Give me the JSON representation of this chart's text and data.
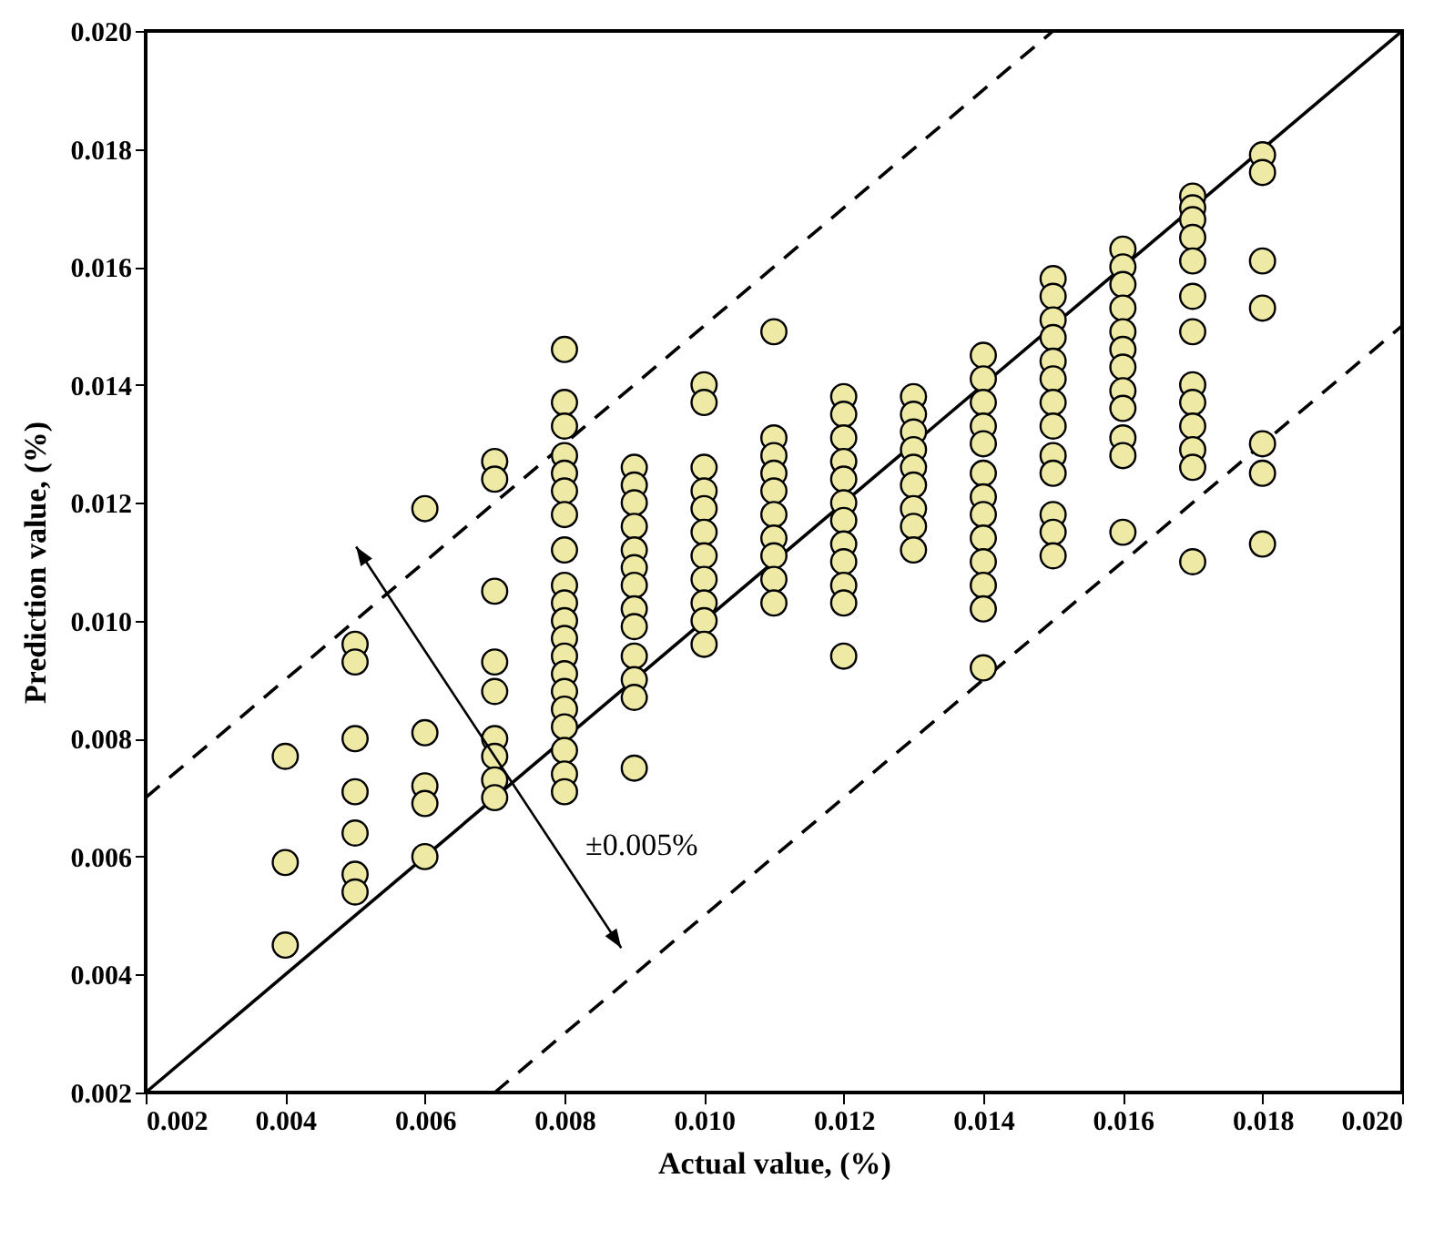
{
  "chart_data": {
    "type": "scatter",
    "xlabel": "Actual value, (%)",
    "ylabel": "Prediction value, (%)",
    "grid": false,
    "xlim": [
      0.002,
      0.02
    ],
    "ylim": [
      0.002,
      0.02
    ],
    "xticks": [
      0.002,
      0.004,
      0.006,
      0.008,
      {
        "value": 0.01,
        "label": "0.010"
      },
      0.012,
      0.014,
      0.016,
      0.018,
      {
        "value": 0.02,
        "label": "0.020"
      }
    ],
    "yticks": [
      0.002,
      0.004,
      0.006,
      0.008,
      {
        "value": 0.01,
        "label": "0.010"
      },
      0.012,
      0.014,
      0.016,
      0.018,
      {
        "value": 0.02,
        "label": "0.020"
      }
    ],
    "annotations": [
      "±0.005%"
    ],
    "series": [
      {
        "type": "line",
        "line_style": "solid",
        "color": "#000000",
        "x": [
          0.002,
          0.02
        ],
        "values": [
          0.002,
          0.02
        ]
      },
      {
        "type": "line",
        "line_style": "dashed",
        "color": "#000000",
        "x": [
          0.002,
          0.015
        ],
        "values": [
          0.007,
          0.02
        ]
      },
      {
        "type": "line",
        "line_style": "dashed",
        "color": "#000000",
        "x": [
          0.007,
          0.02
        ],
        "values": [
          0.002,
          0.015
        ]
      },
      {
        "marker": "circle",
        "color": "#eeeaa6",
        "x": [
          0.004,
          0.004,
          0.004,
          0.005,
          0.005,
          0.005,
          0.005,
          0.005,
          0.005,
          0.005,
          0.006,
          0.006,
          0.006,
          0.006,
          0.006,
          0.007,
          0.007,
          0.007,
          0.007,
          0.007,
          0.007,
          0.007,
          0.007,
          0.007,
          0.008,
          0.008,
          0.008,
          0.008,
          0.008,
          0.008,
          0.008,
          0.008,
          0.008,
          0.008,
          0.008,
          0.008,
          0.008,
          0.008,
          0.008,
          0.008,
          0.008,
          0.008,
          0.008,
          0.008,
          0.009,
          0.009,
          0.009,
          0.009,
          0.009,
          0.009,
          0.009,
          0.009,
          0.009,
          0.009,
          0.009,
          0.009,
          0.009,
          0.01,
          0.01,
          0.01,
          0.01,
          0.01,
          0.01,
          0.01,
          0.01,
          0.01,
          0.01,
          0.01,
          0.011,
          0.011,
          0.011,
          0.011,
          0.011,
          0.011,
          0.011,
          0.011,
          0.011,
          0.011,
          0.012,
          0.012,
          0.012,
          0.012,
          0.012,
          0.012,
          0.012,
          0.012,
          0.012,
          0.012,
          0.012,
          0.012,
          0.013,
          0.013,
          0.013,
          0.013,
          0.013,
          0.013,
          0.013,
          0.013,
          0.013,
          0.014,
          0.014,
          0.014,
          0.014,
          0.014,
          0.014,
          0.014,
          0.014,
          0.014,
          0.014,
          0.014,
          0.014,
          0.014,
          0.015,
          0.015,
          0.015,
          0.015,
          0.015,
          0.015,
          0.015,
          0.015,
          0.015,
          0.015,
          0.015,
          0.015,
          0.015,
          0.016,
          0.016,
          0.016,
          0.016,
          0.016,
          0.016,
          0.016,
          0.016,
          0.016,
          0.016,
          0.016,
          0.016,
          0.017,
          0.017,
          0.017,
          0.017,
          0.017,
          0.017,
          0.017,
          0.017,
          0.017,
          0.017,
          0.017,
          0.017,
          0.017,
          0.018,
          0.018,
          0.018,
          0.018,
          0.018,
          0.018,
          0.018
        ],
        "values": [
          0.0077,
          0.0059,
          0.0045,
          0.0096,
          0.0093,
          0.008,
          0.0071,
          0.0064,
          0.0057,
          0.0054,
          0.0119,
          0.0081,
          0.0072,
          0.0069,
          0.006,
          0.0127,
          0.0124,
          0.0105,
          0.0093,
          0.0088,
          0.008,
          0.0077,
          0.0073,
          0.007,
          0.0146,
          0.0137,
          0.0133,
          0.0128,
          0.0125,
          0.0122,
          0.0118,
          0.0112,
          0.0106,
          0.0103,
          0.01,
          0.0097,
          0.0094,
          0.0091,
          0.0088,
          0.0085,
          0.0082,
          0.0078,
          0.0074,
          0.0071,
          0.0126,
          0.0123,
          0.012,
          0.0116,
          0.0112,
          0.0109,
          0.0106,
          0.0102,
          0.0099,
          0.0094,
          0.009,
          0.0087,
          0.0075,
          0.014,
          0.0137,
          0.0126,
          0.0122,
          0.0119,
          0.0115,
          0.0111,
          0.0107,
          0.0103,
          0.01,
          0.0096,
          0.0149,
          0.0131,
          0.0128,
          0.0125,
          0.0122,
          0.0118,
          0.0114,
          0.0111,
          0.0107,
          0.0103,
          0.0138,
          0.0135,
          0.0131,
          0.0127,
          0.0124,
          0.012,
          0.0117,
          0.0113,
          0.011,
          0.0106,
          0.0103,
          0.0094,
          0.0138,
          0.0135,
          0.0132,
          0.0129,
          0.0126,
          0.0123,
          0.0119,
          0.0116,
          0.0112,
          0.0145,
          0.0141,
          0.0137,
          0.0133,
          0.013,
          0.0125,
          0.0121,
          0.0118,
          0.0114,
          0.011,
          0.0106,
          0.0102,
          0.0092,
          0.0158,
          0.0155,
          0.0151,
          0.0148,
          0.0144,
          0.0141,
          0.0137,
          0.0133,
          0.0128,
          0.0125,
          0.0118,
          0.0115,
          0.0111,
          0.0163,
          0.016,
          0.0157,
          0.0153,
          0.0149,
          0.0146,
          0.0143,
          0.0139,
          0.0136,
          0.0131,
          0.0128,
          0.0115,
          0.0172,
          0.017,
          0.0168,
          0.0165,
          0.0161,
          0.0155,
          0.0149,
          0.014,
          0.0137,
          0.0133,
          0.0129,
          0.0126,
          0.011,
          0.0179,
          0.0176,
          0.0161,
          0.0153,
          0.013,
          0.0125,
          0.0113
        ]
      }
    ]
  }
}
